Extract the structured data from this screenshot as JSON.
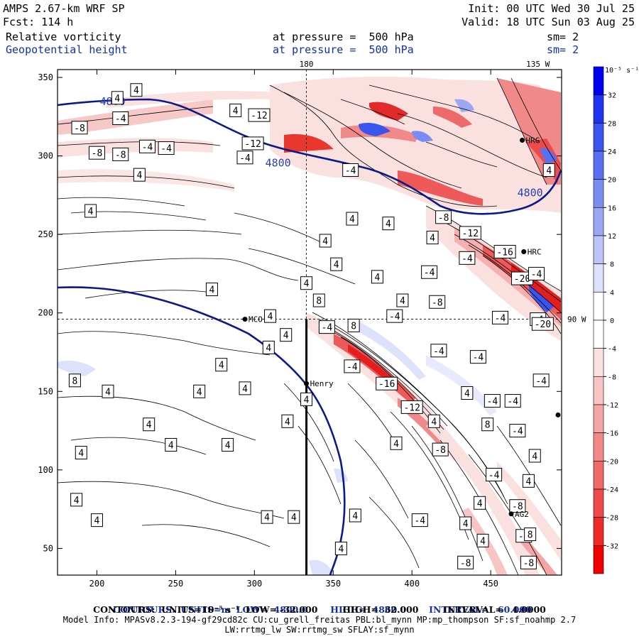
{
  "header": {
    "model": "AMPS 2.67-km WRF SP",
    "fcst": "Fcst: 114 h",
    "init": "Init: 00 UTC Wed 30 Jul 25",
    "valid": "Valid: 18 UTC Sun 03 Aug 25",
    "field1": "Relative vorticity",
    "field2": "Geopotential height",
    "pressure1": "at pressure =  500 hPa",
    "pressure2": "at pressure =  500 hPa",
    "sm1": "sm= 2",
    "sm2": "sm= 2"
  },
  "map": {
    "xlim": [
      175,
      495
    ],
    "ylim": [
      33,
      355
    ],
    "x_ticks": [
      200,
      250,
      300,
      350,
      400,
      450
    ],
    "y_ticks": [
      50,
      100,
      150,
      200,
      250,
      300,
      350
    ],
    "lon_labels": [
      {
        "text": "180",
        "x": 333,
        "y": 355,
        "anchor": "top"
      },
      {
        "text": "135 W",
        "x": 480,
        "y": 355,
        "anchor": "top"
      },
      {
        "text": "90 W",
        "x": 495,
        "y": 196,
        "anchor": "right"
      }
    ],
    "dashed_lines": {
      "lon_x": 333,
      "lat_y": 196
    },
    "stations": [
      {
        "name": "MCO",
        "x": 294,
        "y": 196
      },
      {
        "name": "Henry",
        "x": 333,
        "y": 155
      },
      {
        "name": "HRG",
        "x": 470,
        "y": 310
      },
      {
        "name": "HRC",
        "x": 471,
        "y": 239
      },
      {
        "name": "AG2",
        "x": 463,
        "y": 72
      }
    ],
    "black_line": {
      "x": 333,
      "y_from": 196,
      "y_to": 33
    }
  },
  "chart_data": {
    "type": "heatmap",
    "contour_labels": [
      {
        "v": "4800",
        "x": 210,
        "y": 335,
        "blue": true
      },
      {
        "v": "4800",
        "x": 315,
        "y": 296,
        "blue": true
      },
      {
        "v": "4800",
        "x": 475,
        "y": 277,
        "blue": true
      },
      {
        "v": "4",
        "x": 225,
        "y": 342
      },
      {
        "v": "4",
        "x": 213,
        "y": 337
      },
      {
        "v": "-4",
        "x": 215,
        "y": 324
      },
      {
        "v": "-8",
        "x": 189,
        "y": 318
      },
      {
        "v": "4",
        "x": 288,
        "y": 329
      },
      {
        "v": "-12",
        "x": 303,
        "y": 326
      },
      {
        "v": "-12",
        "x": 299,
        "y": 308
      },
      {
        "v": "-4",
        "x": 232,
        "y": 306
      },
      {
        "v": "-4",
        "x": 244,
        "y": 305
      },
      {
        "v": "-8",
        "x": 200,
        "y": 302
      },
      {
        "v": "-8",
        "x": 215,
        "y": 301
      },
      {
        "v": "-4",
        "x": 294,
        "y": 299
      },
      {
        "v": "4",
        "x": 227,
        "y": 288
      },
      {
        "v": "4",
        "x": 196,
        "y": 265
      },
      {
        "v": "-4",
        "x": 361,
        "y": 291
      },
      {
        "v": "4",
        "x": 362,
        "y": 260
      },
      {
        "v": "4",
        "x": 385,
        "y": 257
      },
      {
        "v": "-8",
        "x": 420,
        "y": 261
      },
      {
        "v": "4",
        "x": 487,
        "y": 291
      },
      {
        "v": "-12",
        "x": 437,
        "y": 251
      },
      {
        "v": "4",
        "x": 413,
        "y": 248
      },
      {
        "v": "4",
        "x": 345,
        "y": 246
      },
      {
        "v": "-16",
        "x": 459,
        "y": 239
      },
      {
        "v": "-4",
        "x": 435,
        "y": 235
      },
      {
        "v": "4",
        "x": 352,
        "y": 231
      },
      {
        "v": "4",
        "x": 333,
        "y": 219
      },
      {
        "v": "-4",
        "x": 411,
        "y": 226
      },
      {
        "v": "4",
        "x": 378,
        "y": 223
      },
      {
        "v": "-20",
        "x": 470,
        "y": 222
      },
      {
        "v": "-4",
        "x": 479,
        "y": 225
      },
      {
        "v": "4",
        "x": 273,
        "y": 215
      },
      {
        "v": "4",
        "x": 394,
        "y": 208
      },
      {
        "v": "-8",
        "x": 416,
        "y": 207
      },
      {
        "v": "8",
        "x": 341,
        "y": 208
      },
      {
        "v": "4",
        "x": 310,
        "y": 198
      },
      {
        "v": "-4",
        "x": 389,
        "y": 198
      },
      {
        "v": "-4",
        "x": 456,
        "y": 197
      },
      {
        "v": "-4",
        "x": 480,
        "y": 196
      },
      {
        "v": "-20",
        "x": 483,
        "y": 193
      },
      {
        "v": "-4",
        "x": 346,
        "y": 191
      },
      {
        "v": "8",
        "x": 363,
        "y": 192
      },
      {
        "v": "4",
        "x": 320,
        "y": 186
      },
      {
        "v": "4",
        "x": 309,
        "y": 178
      },
      {
        "v": "-4",
        "x": 417,
        "y": 176
      },
      {
        "v": "-4",
        "x": 442,
        "y": 172
      },
      {
        "v": "-4",
        "x": 362,
        "y": 166
      },
      {
        "v": "4",
        "x": 279,
        "y": 167
      },
      {
        "v": "8",
        "x": 186,
        "y": 157
      },
      {
        "v": "-16",
        "x": 384,
        "y": 155
      },
      {
        "v": "-4",
        "x": 482,
        "y": 157
      },
      {
        "v": "4",
        "x": 294,
        "y": 152
      },
      {
        "v": "4",
        "x": 265,
        "y": 150
      },
      {
        "v": "4",
        "x": 207,
        "y": 150
      },
      {
        "v": "4",
        "x": 333,
        "y": 145
      },
      {
        "v": "4",
        "x": 435,
        "y": 149
      },
      {
        "v": "-4",
        "x": 451,
        "y": 144
      },
      {
        "v": "-4",
        "x": 464,
        "y": 144
      },
      {
        "v": "-12",
        "x": 400,
        "y": 140
      },
      {
        "v": "4",
        "x": 321,
        "y": 131
      },
      {
        "v": "8",
        "x": 448,
        "y": 129
      },
      {
        "v": "4",
        "x": 233,
        "y": 129
      },
      {
        "v": "4",
        "x": 414,
        "y": 131
      },
      {
        "v": "-4",
        "x": 467,
        "y": 125
      },
      {
        "v": "4",
        "x": 247,
        "y": 116
      },
      {
        "v": "4",
        "x": 283,
        "y": 116
      },
      {
        "v": "4",
        "x": 190,
        "y": 111
      },
      {
        "v": "4",
        "x": 390,
        "y": 117
      },
      {
        "v": "-8",
        "x": 418,
        "y": 113
      },
      {
        "v": "4",
        "x": 478,
        "y": 109
      },
      {
        "v": "-4",
        "x": 452,
        "y": 97
      },
      {
        "v": "4",
        "x": 474,
        "y": 93
      },
      {
        "v": "4",
        "x": 443,
        "y": 79
      },
      {
        "v": "4",
        "x": 187,
        "y": 81
      },
      {
        "v": "-8",
        "x": 467,
        "y": 77
      },
      {
        "v": "4",
        "x": 200,
        "y": 68
      },
      {
        "v": "4",
        "x": 308,
        "y": 70
      },
      {
        "v": "4",
        "x": 325,
        "y": 70
      },
      {
        "v": "4",
        "x": 364,
        "y": 71
      },
      {
        "v": "-4",
        "x": 405,
        "y": 68
      },
      {
        "v": "4",
        "x": 434,
        "y": 66
      },
      {
        "v": "-4",
        "x": 471,
        "y": 58
      },
      {
        "v": "8",
        "x": 475,
        "y": 59
      },
      {
        "v": "4",
        "x": 355,
        "y": 50
      },
      {
        "v": "4",
        "x": 445,
        "y": 55
      },
      {
        "v": "-8",
        "x": 434,
        "y": 41
      },
      {
        "v": "-8",
        "x": 474,
        "y": 41
      }
    ],
    "colorbar": {
      "unit_label": "10⁻⁵ s⁻¹",
      "ticks": [
        32,
        28,
        24,
        20,
        16,
        12,
        8,
        4,
        0,
        -4,
        -8,
        -12,
        -16,
        -20,
        -24,
        -28,
        -32
      ],
      "colors": [
        "#0000f0",
        "#1c34ee",
        "#3a54ee",
        "#5a70f0",
        "#7a8cf2",
        "#9aa8f4",
        "#bcc4f8",
        "#dce2fc",
        "#ffffff",
        "#ffffff",
        "#fbe0e0",
        "#f8c4c4",
        "#f4a6a6",
        "#f28888",
        "#f06a6a",
        "#ee4a4a",
        "#ec2a2a",
        "#f00000"
      ]
    }
  },
  "footer": {
    "line1_contours": "CONTOURS:",
    "line1_units": "UNITS=m",
    "line1_low": "LOW=  4800.0",
    "line1_high": "HIGH=  4860.0",
    "line1_interval": "INTERVAL=   60.000",
    "line2": "CONTOURS:  UNITS=10⁻⁵ s⁻¹  LOW= -32.000        HIGH=  32.000        INTERVAL=   4.0000",
    "line3": "Model Info: MPASv8.2.3-194-gf29cd82c CU:cu_grell_freitas PBL:bl_mynn MP:mp_thompson SF:sf_noahmp 2.7",
    "line4": "LW:rrtmg_lw SW:rrtmg_sw SFLAY:sf_mynn"
  },
  "colors": {
    "blue_text": "#1030b0",
    "height_line": "#0a1a8a"
  }
}
